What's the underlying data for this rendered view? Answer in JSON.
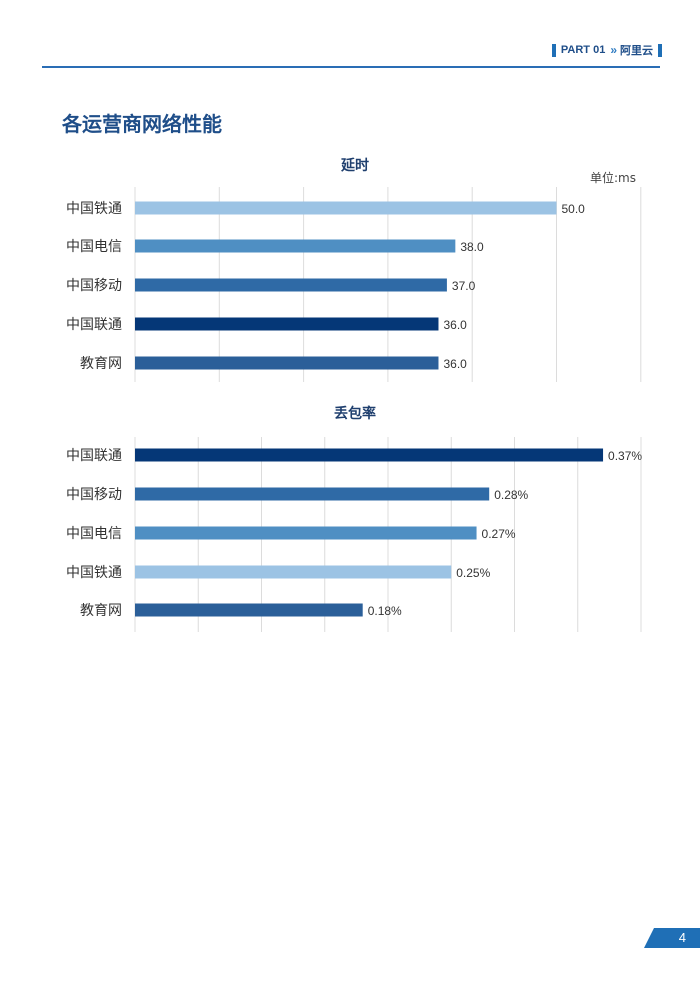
{
  "header": {
    "part_label": "PART 01",
    "chevron": "»",
    "section_label": "阿里云"
  },
  "page_title": "各运营商网络性能",
  "page_number": "4",
  "colors": {
    "联通": "#053777",
    "移动": "#2f6aa6",
    "电信": "#4f8fc3",
    "铁通": "#9cc3e4",
    "教育网": "#2b5f99",
    "accent": "#1f6fb6",
    "grid": "#dcdcdc"
  },
  "chart_data": [
    {
      "type": "bar",
      "orientation": "horizontal",
      "title": "延时",
      "unit_label": "单位:ms",
      "categories": [
        "中国铁通",
        "中国电信",
        "中国移动",
        "中国联通",
        "教育网"
      ],
      "values": [
        50.0,
        38.0,
        37.0,
        36.0,
        36.0
      ],
      "value_labels": [
        "50.0",
        "38.0",
        "37.0",
        "36.0",
        "36.0"
      ],
      "bar_colors": [
        "#9cc3e4",
        "#4f8fc3",
        "#2f6aa6",
        "#053777",
        "#2b5f99"
      ],
      "xlim": [
        0,
        60
      ],
      "grid": true,
      "gridlines": [
        0,
        10,
        20,
        30,
        40,
        50,
        60
      ]
    },
    {
      "type": "bar",
      "orientation": "horizontal",
      "title": "丢包率",
      "categories": [
        "中国联通",
        "中国移动",
        "中国电信",
        "中国铁通",
        "教育网"
      ],
      "values": [
        0.37,
        0.28,
        0.27,
        0.25,
        0.18
      ],
      "value_labels": [
        "0.37%",
        "0.28%",
        "0.27%",
        "0.25%",
        "0.18%"
      ],
      "bar_colors": [
        "#053777",
        "#2f6aa6",
        "#4f8fc3",
        "#9cc3e4",
        "#2b5f99"
      ],
      "xlim": [
        0,
        0.4
      ],
      "grid": true,
      "gridlines": [
        0,
        0.05,
        0.1,
        0.15,
        0.2,
        0.25,
        0.3,
        0.35,
        0.4
      ]
    }
  ]
}
